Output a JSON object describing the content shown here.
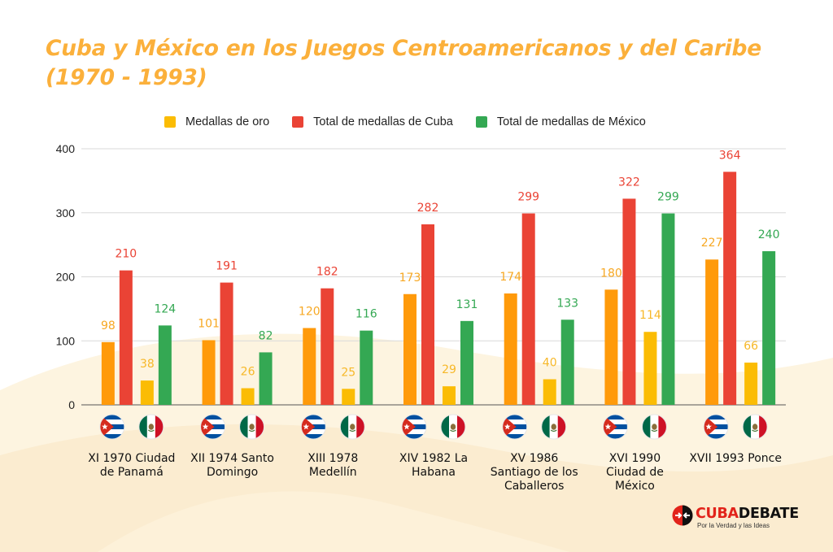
{
  "chart_data": {
    "type": "bar",
    "title": "Cuba y México en los Juegos Centroamericanos y del Caribe (1970 - 1993)",
    "xlabel": "",
    "ylabel": "",
    "ylim": [
      0,
      400
    ],
    "yticks": [
      0,
      100,
      200,
      300,
      400
    ],
    "grid": true,
    "legend_position": "top",
    "categories": [
      [
        "XI 1970 Ciudad",
        "de Panamá"
      ],
      [
        "XII 1974 Santo",
        "Domingo"
      ],
      [
        "XIII 1978",
        "Medellín"
      ],
      [
        "XIV 1982 La",
        "Habana"
      ],
      [
        "XV 1986",
        "Santiago de los",
        "Caballeros"
      ],
      [
        "XVI 1990",
        "Ciudad de",
        "México"
      ],
      [
        "XVII 1993 Ponce"
      ]
    ],
    "series": [
      {
        "name": "Medallas de oro",
        "group": "oro",
        "color": "#ff9a0a",
        "label_color": "#f7a823",
        "values": [
          98,
          101,
          120,
          173,
          174,
          180,
          227
        ]
      },
      {
        "name": "Total de medallas de Cuba",
        "group": "cuba",
        "color": "#ea4335",
        "label_color": "#ea4335",
        "values": [
          210,
          191,
          182,
          282,
          299,
          322,
          364
        ]
      },
      {
        "name": "",
        "group": "oro-mexico",
        "color": "#fbbc04",
        "label_color": "#f7b828",
        "values": [
          38,
          26,
          25,
          29,
          40,
          114,
          66
        ]
      },
      {
        "name": "Total de medallas de México",
        "group": "mexico",
        "color": "#34a853",
        "label_color": "#34a853",
        "values": [
          124,
          82,
          116,
          131,
          133,
          299,
          240
        ]
      }
    ],
    "legend": [
      {
        "label": "Medallas de oro",
        "color": "#fbbc04"
      },
      {
        "label": "Total de medallas de Cuba",
        "color": "#ea4335"
      },
      {
        "label": "Total de medallas de México",
        "color": "#34a853"
      }
    ],
    "category_icons": [
      "cuba-flag-icon",
      "mexico-flag-icon"
    ]
  },
  "logo": {
    "name_part1": "CUBA",
    "name_part2": "DEBATE",
    "tagline": "Por la Verdad y las Ideas"
  }
}
